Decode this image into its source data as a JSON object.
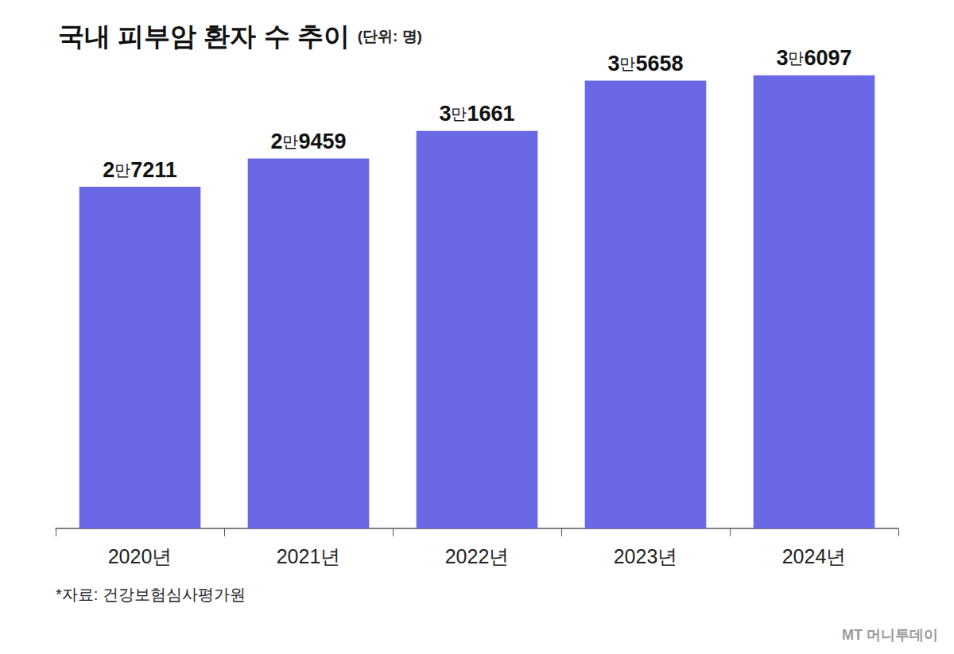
{
  "chart_data": {
    "type": "bar",
    "title": "국내 피부암 환자 수 추이",
    "subtitle": "(단위: 명)",
    "categories": [
      "2020년",
      "2021년",
      "2022년",
      "2023년",
      "2024년"
    ],
    "values": [
      27211,
      29459,
      31661,
      35658,
      36097
    ],
    "value_labels": [
      "2만7211",
      "2만9459",
      "3만1661",
      "3만5658",
      "3만6097"
    ],
    "color": "#6b68e6",
    "ylim": [
      0,
      40000
    ],
    "yticks": [
      0,
      40000
    ],
    "grid": false,
    "data_labels": true,
    "tick_labels": "x",
    "annotations": [
      "*자료: 건강보험심사평가원",
      "MT 머니투데이"
    ]
  }
}
